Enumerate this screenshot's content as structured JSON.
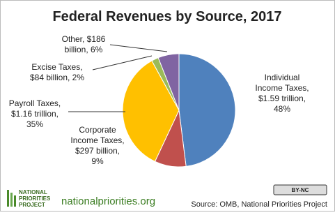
{
  "chart_data": {
    "type": "pie",
    "title": "Federal Revenues by Source, 2017",
    "values": [
      48,
      9,
      35,
      2,
      6
    ],
    "value_labels": [
      [
        "Individual",
        "Income Taxes,",
        "$1.59 trillion,",
        "48%"
      ],
      [
        "Corporate",
        "Income Taxes,",
        "$297 billion,",
        "9%"
      ],
      [
        "Payroll Taxes,",
        "$1.16 trillion,",
        "35%"
      ],
      [
        "Excise Taxes,",
        "$84 billion, 2%"
      ],
      [
        "Other, $186",
        "billion, 6%"
      ]
    ],
    "colors": [
      "#4f81bd",
      "#c0504d",
      "#ffc000",
      "#9bbb59",
      "#8064a2"
    ]
  },
  "footer": {
    "logo": [
      "NATIONAL",
      "PRIORITIES",
      "PROJECT"
    ],
    "website": "nationalpriorities.org",
    "license": "BY-NC",
    "source": "Source: OMB, National Priorities Project"
  }
}
